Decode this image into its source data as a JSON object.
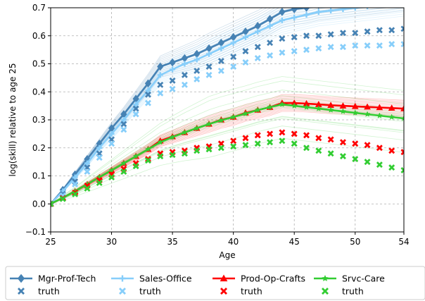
{
  "chart_data": {
    "type": "line",
    "title": "",
    "xlabel": "Age",
    "ylabel": "log(skill) relative to age 25",
    "xlim": [
      25,
      54
    ],
    "ylim": [
      -0.1,
      0.7
    ],
    "xticks": [
      25,
      30,
      35,
      40,
      45,
      50,
      54
    ],
    "yticks": [
      -0.1,
      0.0,
      0.1,
      0.2,
      0.3,
      0.4,
      0.5,
      0.6,
      0.7
    ],
    "ytick_labels": [
      "−0.1",
      "0.0",
      "0.1",
      "0.2",
      "0.3",
      "0.4",
      "0.5",
      "0.6",
      "0.7"
    ],
    "grid": true,
    "legend_position": "below plot",
    "x": [
      25,
      26,
      27,
      28,
      29,
      30,
      31,
      32,
      33,
      34,
      35,
      36,
      37,
      38,
      39,
      40,
      41,
      42,
      43,
      44,
      45,
      46,
      47,
      48,
      49,
      50,
      51,
      52,
      53,
      54
    ],
    "series": [
      {
        "name": "Mgr-Prof-Tech",
        "color": "#4682b4",
        "marker": "diamond",
        "values": [
          0.0,
          0.05,
          0.105,
          0.16,
          0.215,
          0.27,
          0.32,
          0.375,
          0.43,
          0.49,
          0.505,
          0.52,
          0.535,
          0.555,
          0.575,
          0.595,
          0.615,
          0.635,
          0.66,
          0.685,
          0.695,
          0.7,
          0.71,
          0.715,
          0.72,
          0.725,
          0.73,
          0.735,
          0.74,
          0.745
        ]
      },
      {
        "name": "Sales-Office",
        "color": "#87cefa",
        "marker": "plus",
        "values": [
          0.0,
          0.045,
          0.095,
          0.145,
          0.2,
          0.25,
          0.3,
          0.355,
          0.405,
          0.46,
          0.48,
          0.5,
          0.515,
          0.535,
          0.555,
          0.575,
          0.595,
          0.615,
          0.635,
          0.655,
          0.665,
          0.675,
          0.685,
          0.69,
          0.695,
          0.7,
          0.705,
          0.71,
          0.715,
          0.72
        ]
      },
      {
        "name": "Prod-Op-Crafts",
        "color": "#ff0000",
        "marker": "triangle",
        "values": [
          0.0,
          0.022,
          0.045,
          0.07,
          0.095,
          0.12,
          0.145,
          0.17,
          0.195,
          0.225,
          0.24,
          0.255,
          0.27,
          0.285,
          0.3,
          0.31,
          0.325,
          0.335,
          0.345,
          0.36,
          0.36,
          0.358,
          0.355,
          0.352,
          0.35,
          0.348,
          0.346,
          0.344,
          0.342,
          0.34
        ]
      },
      {
        "name": "Srvc-Care",
        "color": "#32cd32",
        "marker": "star",
        "values": [
          0.0,
          0.022,
          0.045,
          0.07,
          0.095,
          0.12,
          0.145,
          0.17,
          0.195,
          0.22,
          0.238,
          0.255,
          0.27,
          0.285,
          0.298,
          0.31,
          0.322,
          0.335,
          0.345,
          0.355,
          0.35,
          0.345,
          0.34,
          0.335,
          0.33,
          0.325,
          0.32,
          0.315,
          0.31,
          0.305
        ]
      }
    ],
    "truth": [
      {
        "name": "truth",
        "color": "#4682b4",
        "values": [
          0.0,
          0.035,
          0.08,
          0.13,
          0.18,
          0.23,
          0.285,
          0.34,
          0.39,
          0.425,
          0.44,
          0.46,
          0.475,
          0.49,
          0.51,
          0.525,
          0.545,
          0.56,
          0.575,
          0.59,
          0.595,
          0.6,
          0.6,
          0.605,
          0.61,
          0.61,
          0.615,
          0.62,
          0.62,
          0.625
        ]
      },
      {
        "name": "truth",
        "color": "#87cefa",
        "values": [
          0.0,
          0.03,
          0.07,
          0.115,
          0.165,
          0.215,
          0.265,
          0.32,
          0.36,
          0.395,
          0.41,
          0.425,
          0.445,
          0.46,
          0.475,
          0.49,
          0.505,
          0.52,
          0.53,
          0.54,
          0.545,
          0.55,
          0.555,
          0.56,
          0.56,
          0.565,
          0.565,
          0.565,
          0.57,
          0.57
        ]
      },
      {
        "name": "truth",
        "color": "#ff0000",
        "values": [
          0.0,
          0.02,
          0.04,
          0.065,
          0.085,
          0.105,
          0.125,
          0.145,
          0.16,
          0.18,
          0.185,
          0.19,
          0.2,
          0.205,
          0.215,
          0.225,
          0.235,
          0.245,
          0.25,
          0.255,
          0.25,
          0.245,
          0.235,
          0.23,
          0.22,
          0.215,
          0.21,
          0.2,
          0.19,
          0.185
        ]
      },
      {
        "name": "truth",
        "color": "#32cd32",
        "values": [
          0.0,
          0.018,
          0.035,
          0.055,
          0.075,
          0.095,
          0.115,
          0.135,
          0.155,
          0.17,
          0.175,
          0.18,
          0.19,
          0.195,
          0.2,
          0.205,
          0.21,
          0.215,
          0.22,
          0.225,
          0.215,
          0.2,
          0.19,
          0.18,
          0.17,
          0.16,
          0.15,
          0.14,
          0.13,
          0.12
        ]
      }
    ],
    "legend": [
      {
        "label": "Mgr-Prof-Tech",
        "color": "#4682b4",
        "kind": "line",
        "marker": "diamond"
      },
      {
        "label": "truth",
        "color": "#4682b4",
        "kind": "cross"
      },
      {
        "label": "Sales-Office",
        "color": "#87cefa",
        "kind": "line",
        "marker": "plus"
      },
      {
        "label": "truth",
        "color": "#87cefa",
        "kind": "cross"
      },
      {
        "label": "Prod-Op-Crafts",
        "color": "#ff0000",
        "kind": "line",
        "marker": "triangle"
      },
      {
        "label": "truth",
        "color": "#ff0000",
        "kind": "cross"
      },
      {
        "label": "Srvc-Care",
        "color": "#32cd32",
        "kind": "line",
        "marker": "star"
      },
      {
        "label": "truth",
        "color": "#32cd32",
        "kind": "cross"
      }
    ]
  }
}
